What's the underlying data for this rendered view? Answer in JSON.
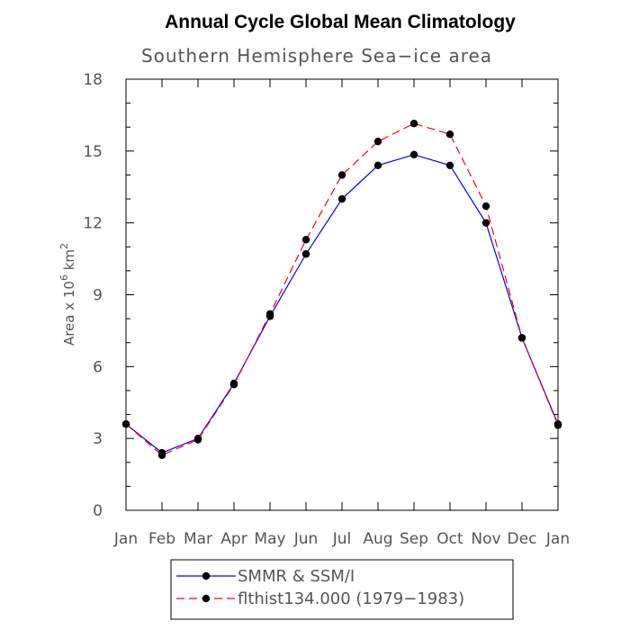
{
  "chart_data": {
    "type": "line",
    "title": "Annual Cycle Global Mean Climatology",
    "subtitle": "Southern Hemisphere Sea−ice area",
    "ylabel": "Area x 10^6 km^2",
    "ylabel_parts": {
      "base": "Area x 10",
      "sup1": "6",
      "mid": " km",
      "sup2": "2"
    },
    "xlabel": "",
    "categories": [
      "Jan",
      "Feb",
      "Mar",
      "Apr",
      "May",
      "Jun",
      "Jul",
      "Aug",
      "Sep",
      "Oct",
      "Nov",
      "Dec",
      "Jan"
    ],
    "ylim": [
      0,
      18
    ],
    "yticks": [
      0,
      3,
      6,
      9,
      12,
      15,
      18
    ],
    "yticks_minor_step": 1,
    "series": [
      {
        "name": "SMMR & SSM/I",
        "color": "#0000ff",
        "dash": "solid",
        "marker": "filled-circle",
        "values": [
          3.6,
          2.4,
          3.0,
          5.3,
          8.1,
          10.7,
          13.0,
          14.4,
          14.85,
          14.4,
          12.0,
          7.2,
          3.6
        ]
      },
      {
        "name": "flthist134.000 (1979−1983)",
        "color": "#ff0000",
        "dash": "dashed",
        "marker": "filled-circle",
        "values": [
          3.6,
          2.3,
          2.95,
          5.25,
          8.2,
          11.3,
          14.0,
          15.4,
          16.15,
          15.7,
          12.7,
          7.2,
          3.55
        ]
      }
    ],
    "legend": {
      "placement": "bottom-center"
    },
    "grid": false
  }
}
